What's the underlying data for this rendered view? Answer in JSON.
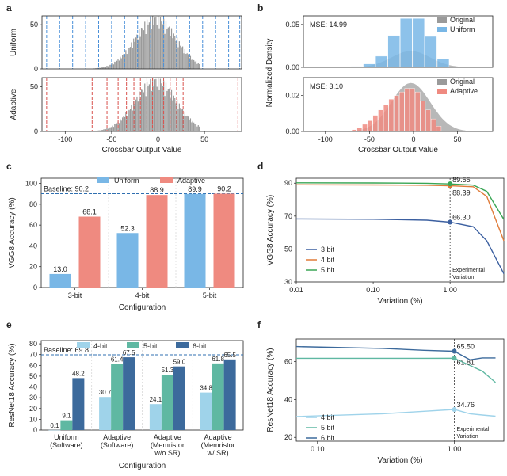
{
  "panel_labels": [
    "a",
    "b",
    "c",
    "d",
    "e",
    "f"
  ],
  "colors": {
    "uniform": "#4a90d9",
    "adaptive": "#d9534f",
    "gray": "#9a9a9a",
    "blue_fill": "#79b7e6",
    "red_fill": "#ef8a80",
    "baseline": "#2f6fb0",
    "bit3": "#3b5fa0",
    "bit4": "#e07b39",
    "bit5": "#3aa655",
    "r4": "#9fd3ea",
    "r5": "#5fb8a2",
    "r6": "#3c6a9c"
  },
  "chart_data": [
    {
      "id": "a",
      "type": "bar",
      "subtype": "histogram",
      "xlabel": "Crossbar Output Value",
      "x_ticks": [
        "-100",
        "-50",
        "0",
        "50"
      ],
      "xlim": [
        -125,
        90
      ],
      "panels": [
        {
          "ylabel": "Uniform",
          "y_ticks": [
            "0",
            "50"
          ],
          "ylim": [
            0,
            60
          ],
          "line_color": "#4a90d9",
          "quantization_levels": [
            -120,
            -106,
            -92,
            -78,
            -64,
            -50,
            -36,
            -22,
            -8,
            6,
            20,
            34,
            48,
            62,
            76,
            88
          ]
        },
        {
          "ylabel": "Adaptive",
          "y_ticks": [
            "0",
            "50"
          ],
          "ylim": [
            0,
            60
          ],
          "line_color": "#d9534f",
          "quantization_levels": [
            -120,
            -71,
            -55,
            -43,
            -34,
            -26,
            -19,
            -12,
            -6,
            0,
            6,
            13,
            20,
            27,
            86
          ]
        }
      ],
      "distribution": {
        "mean": -3,
        "std": 22,
        "peak": 54
      }
    },
    {
      "id": "b",
      "type": "bar",
      "subtype": "histogram",
      "ylabel": "Normalized Density",
      "xlabel": "Crossbar Output Value",
      "x_ticks": [
        "-100",
        "-50",
        "0",
        "50"
      ],
      "xlim": [
        -125,
        90
      ],
      "panels": [
        {
          "mse_label": "MSE: 14.99",
          "y_ticks": [
            "0.00",
            "0.05"
          ],
          "ylim": [
            0,
            0.06
          ],
          "legend": [
            "Original",
            "Uniform"
          ],
          "bin_edges": [
            -71,
            -57,
            -43,
            -29,
            -15,
            -1,
            13,
            27,
            41
          ],
          "values": [
            0.001,
            0.004,
            0.013,
            0.037,
            0.057,
            0.057,
            0.036,
            0.01
          ],
          "original_peak": 0.019
        },
        {
          "mse_label": "MSE: 3.10",
          "y_ticks": [
            "0.00",
            "0.02"
          ],
          "ylim": [
            0,
            0.03
          ],
          "legend": [
            "Original",
            "Adaptive"
          ],
          "bin_edges": [
            -70,
            -64,
            -58,
            -52,
            -46,
            -40,
            -34,
            -28,
            -22,
            -16,
            -10,
            -4,
            2,
            8,
            14,
            20,
            26,
            32
          ],
          "values": [
            0.001,
            0.002,
            0.004,
            0.006,
            0.009,
            0.012,
            0.015,
            0.018,
            0.02,
            0.022,
            0.024,
            0.024,
            0.022,
            0.017,
            0.012,
            0.007,
            0.003
          ],
          "original_peak": 0.027
        }
      ]
    },
    {
      "id": "c",
      "type": "bar",
      "ylabel": "VGG8 Accuracy (%)",
      "xlabel": "Configuration",
      "categories": [
        "3-bit",
        "4-bit",
        "5-bit"
      ],
      "series": [
        {
          "name": "Uniform",
          "values": [
            13.0,
            52.3,
            89.9
          ],
          "labels": [
            "13.0",
            "52.3",
            "89.9"
          ]
        },
        {
          "name": "Adaptive",
          "values": [
            68.1,
            88.9,
            90.2
          ],
          "labels": [
            "68.1",
            "88.9",
            "90.2"
          ]
        }
      ],
      "baseline": {
        "value": 90.2,
        "label": "Baseline: 90.2"
      },
      "ylim": [
        0,
        105
      ],
      "y_ticks": [
        "0",
        "20",
        "40",
        "60",
        "80",
        "100"
      ]
    },
    {
      "id": "d",
      "type": "line",
      "xscale": "log",
      "ylabel": "VGG8 Accuracy (%)",
      "xlabel": "Variation (%)",
      "x_ticks": [
        "0.01",
        "0.10",
        "1.00"
      ],
      "xlim": [
        0.01,
        5
      ],
      "y_ticks": [
        "30",
        "50",
        "70",
        "90"
      ],
      "ylim": [
        30,
        93
      ],
      "series": [
        {
          "name": "3 bit",
          "x": [
            0.01,
            0.1,
            0.5,
            1.0,
            2.0,
            3.0,
            5.0
          ],
          "y": [
            68.3,
            68.1,
            67.5,
            66.3,
            63.5,
            55.0,
            35.0
          ]
        },
        {
          "name": "4 bit",
          "x": [
            0.01,
            0.1,
            0.5,
            1.0,
            2.0,
            3.0,
            5.0
          ],
          "y": [
            89.0,
            88.9,
            88.7,
            88.39,
            87.8,
            82.0,
            55.0
          ]
        },
        {
          "name": "5 bit",
          "x": [
            0.01,
            0.1,
            0.5,
            1.0,
            2.0,
            3.0,
            5.0
          ],
          "y": [
            90.2,
            90.1,
            89.9,
            89.55,
            88.8,
            85.0,
            68.0
          ]
        }
      ],
      "annotations": [
        "89.55",
        "88.39",
        "66.30"
      ],
      "marker_x": 1.0,
      "marker_label": [
        "Experimental",
        "Variation"
      ]
    },
    {
      "id": "e",
      "type": "bar",
      "ylabel": "ResNet18 Accuracy (%)",
      "xlabel": "Configuration",
      "categories": [
        [
          "Uniform",
          "(Software)"
        ],
        [
          "Adaptive",
          "(Software)"
        ],
        [
          "Adaptive",
          "(Memristor",
          "w/o SR)"
        ],
        [
          "Adaptive",
          "(Memristor",
          "w/ SR)"
        ]
      ],
      "series": [
        {
          "name": "4-bit",
          "values": [
            0.1,
            30.7,
            24.1,
            34.8
          ],
          "labels": [
            "0.1",
            "30.7",
            "24.1",
            "34.8"
          ]
        },
        {
          "name": "5-bit",
          "values": [
            9.1,
            61.4,
            51.3,
            61.8
          ],
          "labels": [
            "9.1",
            "61.4",
            "51.3",
            "61.8"
          ]
        },
        {
          "name": "6-bit",
          "values": [
            48.2,
            67.5,
            59.0,
            65.5
          ],
          "labels": [
            "48.2",
            "67.5",
            "59.0",
            "65.5"
          ]
        }
      ],
      "baseline": {
        "value": 69.8,
        "label": "Baseline: 69.8"
      },
      "ylim": [
        0,
        83
      ],
      "y_ticks": [
        "0",
        "10",
        "20",
        "30",
        "40",
        "50",
        "60",
        "70",
        "80"
      ]
    },
    {
      "id": "f",
      "type": "line",
      "xscale": "log",
      "ylabel": "ResNet18 Accuracy (%)",
      "xlabel": "Variation (%)",
      "x_ticks": [
        "0.10",
        "1.00"
      ],
      "xlim": [
        0.07,
        2.3
      ],
      "y_ticks": [
        "20",
        "40",
        "60"
      ],
      "ylim": [
        18,
        72
      ],
      "series": [
        {
          "name": "4 bit",
          "x": [
            0.07,
            0.3,
            0.6,
            1.0,
            1.3,
            1.6,
            2.0
          ],
          "y": [
            31.0,
            32.5,
            33.8,
            34.76,
            32.5,
            31.8,
            31.2
          ]
        },
        {
          "name": "5 bit",
          "x": [
            0.07,
            0.3,
            0.6,
            1.0,
            1.3,
            1.6,
            2.0
          ],
          "y": [
            61.8,
            61.8,
            61.8,
            61.81,
            58.0,
            55.0,
            49.0
          ]
        },
        {
          "name": "6 bit",
          "x": [
            0.07,
            0.3,
            0.6,
            1.0,
            1.3,
            1.6,
            2.0
          ],
          "y": [
            68.0,
            67.0,
            66.0,
            65.5,
            61.0,
            62.0,
            62.0
          ]
        }
      ],
      "annotations": [
        "65.50",
        "61.81",
        "34.76"
      ],
      "marker_x": 1.0,
      "marker_label": [
        "Experimental",
        "Variation"
      ]
    }
  ]
}
